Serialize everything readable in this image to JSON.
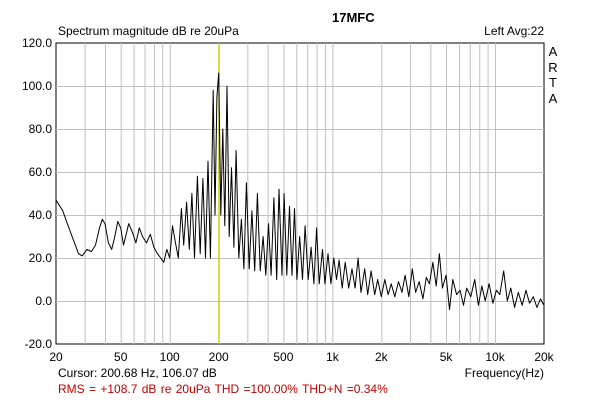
{
  "chart_data": {
    "type": "line",
    "title": "17MFC",
    "ylabel": "Spectrum magnitude dB re 20uPa",
    "xlabel": "Frequency(Hz)",
    "top_right": "Left  Avg:22",
    "watermark": [
      "A",
      "R",
      "T",
      "A"
    ],
    "x_scale": "log",
    "xlim": [
      20,
      20000
    ],
    "ylim": [
      -20,
      120
    ],
    "grid": true,
    "x_major_ticks": [
      20,
      50,
      100,
      200,
      500,
      1000,
      2000,
      5000,
      10000,
      20000
    ],
    "x_tick_labels": [
      "20",
      "50",
      "100",
      "200",
      "500",
      "1k",
      "2k",
      "5k",
      "10k",
      "20k"
    ],
    "x_minor_gridlines": [
      30,
      40,
      60,
      70,
      80,
      90,
      300,
      400,
      600,
      700,
      800,
      900,
      3000,
      4000,
      6000,
      7000,
      8000,
      9000
    ],
    "y_ticks": [
      120,
      100,
      80,
      60,
      40,
      20,
      0,
      -20
    ],
    "y_tick_labels": [
      "120.0",
      "100.0",
      "80.0",
      "60.0",
      "40.0",
      "20.0",
      "0.0",
      "-20.0"
    ],
    "cursor": {
      "frequency_hz": 200.68,
      "level_db": 106.07,
      "color": "#c8c800"
    },
    "cursor_readout": "Cursor: 200.68 Hz, 106.07 dB",
    "stats": "RMS = +108.7 dB re 20uPa    THD =100.00%    THD+N =0.34%",
    "series": [
      {
        "color": "#000000",
        "points": [
          [
            20,
            47
          ],
          [
            22,
            42
          ],
          [
            24,
            34
          ],
          [
            26,
            27
          ],
          [
            27.5,
            22
          ],
          [
            29,
            21
          ],
          [
            31,
            24
          ],
          [
            33,
            23
          ],
          [
            35,
            26
          ],
          [
            37,
            34
          ],
          [
            38.5,
            38
          ],
          [
            40,
            36
          ],
          [
            42,
            27
          ],
          [
            44,
            24
          ],
          [
            46,
            30
          ],
          [
            48,
            37
          ],
          [
            50,
            34
          ],
          [
            52,
            26
          ],
          [
            54,
            31
          ],
          [
            56,
            36
          ],
          [
            59,
            32
          ],
          [
            62,
            27
          ],
          [
            65,
            34
          ],
          [
            68,
            30
          ],
          [
            72,
            27
          ],
          [
            76,
            31
          ],
          [
            80,
            25
          ],
          [
            84,
            22
          ],
          [
            88,
            20
          ],
          [
            92,
            18
          ],
          [
            96,
            24
          ],
          [
            100,
            20
          ],
          [
            104,
            35
          ],
          [
            108,
            28
          ],
          [
            113,
            20
          ],
          [
            118,
            43
          ],
          [
            122,
            26
          ],
          [
            127,
            46
          ],
          [
            132,
            24
          ],
          [
            137,
            50
          ],
          [
            142,
            20
          ],
          [
            148,
            58
          ],
          [
            154,
            22
          ],
          [
            160,
            57
          ],
          [
            166,
            20
          ],
          [
            172,
            65
          ],
          [
            178,
            20
          ],
          [
            185,
            98
          ],
          [
            190,
            40
          ],
          [
            195,
            95
          ],
          [
            200,
            106
          ],
          [
            206,
            40
          ],
          [
            212,
            80
          ],
          [
            218,
            35
          ],
          [
            225,
            100
          ],
          [
            232,
            30
          ],
          [
            240,
            62
          ],
          [
            248,
            25
          ],
          [
            256,
            70
          ],
          [
            266,
            20
          ],
          [
            276,
            38
          ],
          [
            286,
            15
          ],
          [
            296,
            55
          ],
          [
            308,
            15
          ],
          [
            320,
            42
          ],
          [
            333,
            14
          ],
          [
            346,
            50
          ],
          [
            360,
            14
          ],
          [
            375,
            30
          ],
          [
            390,
            12
          ],
          [
            405,
            36
          ],
          [
            420,
            12
          ],
          [
            437,
            48
          ],
          [
            455,
            10
          ],
          [
            470,
            52
          ],
          [
            490,
            12
          ],
          [
            505,
            50
          ],
          [
            525,
            12
          ],
          [
            545,
            44
          ],
          [
            565,
            12
          ],
          [
            585,
            43
          ],
          [
            605,
            10
          ],
          [
            630,
            30
          ],
          [
            655,
            10
          ],
          [
            680,
            35
          ],
          [
            710,
            10
          ],
          [
            740,
            25
          ],
          [
            770,
            8
          ],
          [
            800,
            34
          ],
          [
            830,
            8
          ],
          [
            870,
            24
          ],
          [
            900,
            8
          ],
          [
            940,
            22
          ],
          [
            980,
            8
          ],
          [
            1020,
            20
          ],
          [
            1060,
            10
          ],
          [
            1100,
            19
          ],
          [
            1150,
            6
          ],
          [
            1200,
            18
          ],
          [
            1260,
            6
          ],
          [
            1320,
            15
          ],
          [
            1380,
            6
          ],
          [
            1440,
            20
          ],
          [
            1500,
            4
          ],
          [
            1580,
            15
          ],
          [
            1650,
            3
          ],
          [
            1730,
            14
          ],
          [
            1820,
            3
          ],
          [
            1900,
            10
          ],
          [
            2000,
            2
          ],
          [
            2100,
            10
          ],
          [
            2200,
            3
          ],
          [
            2300,
            8
          ],
          [
            2420,
            2
          ],
          [
            2550,
            9
          ],
          [
            2680,
            4
          ],
          [
            2800,
            12
          ],
          [
            2950,
            2
          ],
          [
            3100,
            15
          ],
          [
            3250,
            4
          ],
          [
            3420,
            9
          ],
          [
            3600,
            1
          ],
          [
            3780,
            11
          ],
          [
            3950,
            8
          ],
          [
            4150,
            18
          ],
          [
            4350,
            7
          ],
          [
            4550,
            22
          ],
          [
            4750,
            6
          ],
          [
            5000,
            12
          ],
          [
            5250,
            -4
          ],
          [
            5500,
            10
          ],
          [
            5800,
            3
          ],
          [
            6100,
            5
          ],
          [
            6400,
            -2
          ],
          [
            6700,
            6
          ],
          [
            7100,
            2
          ],
          [
            7500,
            10
          ],
          [
            7900,
            -2
          ],
          [
            8300,
            7
          ],
          [
            8700,
            0
          ],
          [
            9200,
            8
          ],
          [
            9700,
            -1
          ],
          [
            10200,
            5
          ],
          [
            10700,
            3
          ],
          [
            11300,
            14
          ],
          [
            11900,
            0
          ],
          [
            12500,
            6
          ],
          [
            13200,
            -3
          ],
          [
            13900,
            4
          ],
          [
            14700,
            -2
          ],
          [
            15500,
            5
          ],
          [
            16300,
            -1
          ],
          [
            17200,
            2
          ],
          [
            18100,
            -3
          ],
          [
            19000,
            1
          ],
          [
            20000,
            -2
          ]
        ]
      }
    ]
  }
}
